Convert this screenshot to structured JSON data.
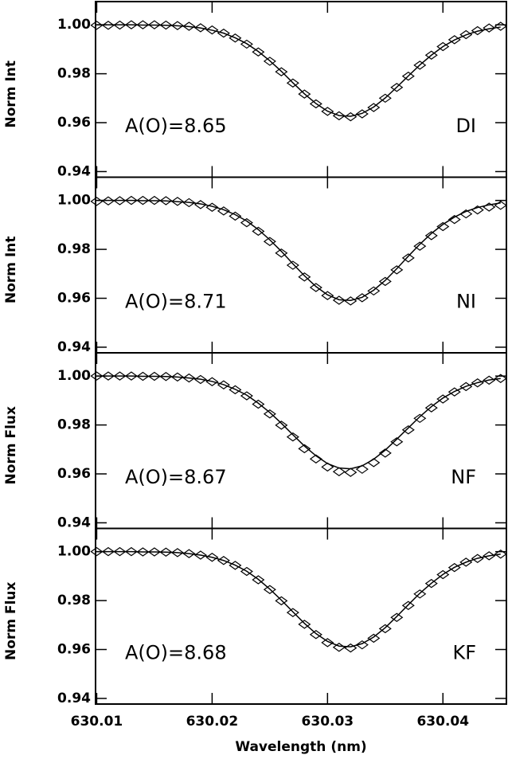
{
  "chart_data": [
    {
      "type": "line",
      "ylabel": "Norm Int",
      "annotation": "A(O)=8.65",
      "label": "DI",
      "x": [
        630.01,
        630.011,
        630.012,
        630.013,
        630.014,
        630.015,
        630.016,
        630.017,
        630.018,
        630.019,
        630.02,
        630.021,
        630.022,
        630.023,
        630.024,
        630.025,
        630.026,
        630.027,
        630.028,
        630.029,
        630.03,
        630.031,
        630.032,
        630.033,
        630.034,
        630.035,
        630.036,
        630.037,
        630.038,
        630.039,
        630.04,
        630.041,
        630.042,
        630.043,
        630.044,
        630.045
      ],
      "series": [
        {
          "color": "#000000",
          "marker": "none",
          "values": [
            1.0,
            1.0,
            1.0,
            1.0,
            0.9999,
            0.9999,
            0.9998,
            0.9996,
            0.9993,
            0.9987,
            0.9978,
            0.9966,
            0.9947,
            0.9923,
            0.9891,
            0.9853,
            0.981,
            0.9763,
            0.9718,
            0.9678,
            0.9647,
            0.9629,
            0.9626,
            0.9638,
            0.9664,
            0.9701,
            0.9745,
            0.9791,
            0.9836,
            0.9876,
            0.9911,
            0.9938,
            0.9959,
            0.9974,
            0.9984,
            0.9991
          ]
        },
        {
          "color": "#000000",
          "marker": "diamond",
          "values": [
            0.9998,
            0.9998,
            0.9999,
            1.0,
            1.0,
            1.0,
            0.9999,
            0.9997,
            0.9994,
            0.9988,
            0.9979,
            0.9966,
            0.9946,
            0.9921,
            0.9889,
            0.9851,
            0.9808,
            0.9762,
            0.9717,
            0.9677,
            0.9646,
            0.9628,
            0.9624,
            0.9636,
            0.9662,
            0.97,
            0.9744,
            0.979,
            0.9835,
            0.9876,
            0.9911,
            0.9939,
            0.996,
            0.9976,
            0.9987,
            0.9994
          ]
        }
      ],
      "xlim": [
        630.0099,
        630.0455
      ],
      "xticks": [
        630.01,
        630.02,
        630.03,
        630.04
      ],
      "ylim": [
        0.9377,
        1.0095
      ],
      "yticks": [
        0.94,
        0.96,
        0.98,
        {
          "value": 1,
          "label": "1.00"
        }
      ]
    },
    {
      "type": "line",
      "ylabel": "Norm Int",
      "annotation": "A(O)=8.71",
      "label": "NI",
      "x": [
        630.01,
        630.011,
        630.012,
        630.013,
        630.014,
        630.015,
        630.016,
        630.017,
        630.018,
        630.019,
        630.02,
        630.021,
        630.022,
        630.023,
        630.024,
        630.025,
        630.026,
        630.027,
        630.028,
        630.029,
        630.03,
        630.031,
        630.032,
        630.033,
        630.034,
        630.035,
        630.036,
        630.037,
        630.038,
        630.039,
        630.04,
        630.041,
        630.042,
        630.043,
        630.044,
        630.045
      ],
      "series": [
        {
          "color": "#000000",
          "marker": "none",
          "values": [
            1.0,
            1.0,
            1.0,
            1.0,
            0.9999,
            0.9999,
            0.9998,
            0.9995,
            0.9992,
            0.9986,
            0.9976,
            0.9962,
            0.9942,
            0.9916,
            0.9881,
            0.9839,
            0.9792,
            0.9741,
            0.9692,
            0.9648,
            0.9614,
            0.9594,
            0.9591,
            0.9604,
            0.9633,
            0.9673,
            0.9721,
            0.9772,
            0.9821,
            0.9865,
            0.9902,
            0.9932,
            0.9955,
            0.9971,
            0.9982,
            0.999
          ]
        },
        {
          "color": "#000000",
          "marker": "diamond",
          "values": [
            0.9996,
            0.9998,
            0.9999,
            1.0,
            1.0,
            1.0,
            0.9999,
            0.9996,
            0.9991,
            0.9983,
            0.9972,
            0.9957,
            0.9936,
            0.9909,
            0.9874,
            0.9832,
            0.9785,
            0.9735,
            0.9687,
            0.9644,
            0.9611,
            0.9592,
            0.9589,
            0.9602,
            0.963,
            0.9669,
            0.9716,
            0.9765,
            0.9813,
            0.9856,
            0.9893,
            0.9922,
            0.9945,
            0.9961,
            0.9973,
            0.998
          ]
        }
      ],
      "xlim": [
        630.0099,
        630.0455
      ],
      "xticks": [
        630.01,
        630.02,
        630.03,
        630.04
      ],
      "ylim": [
        0.9377,
        1.0095
      ],
      "yticks": [
        0.94,
        0.96,
        0.98,
        {
          "value": 1,
          "label": "1.00"
        }
      ]
    },
    {
      "type": "line",
      "ylabel": "Norm Flux",
      "annotation": "A(O)=8.67",
      "label": "NF",
      "x": [
        630.01,
        630.011,
        630.012,
        630.013,
        630.014,
        630.015,
        630.016,
        630.017,
        630.018,
        630.019,
        630.02,
        630.021,
        630.022,
        630.023,
        630.024,
        630.025,
        630.026,
        630.027,
        630.028,
        630.029,
        630.03,
        630.031,
        630.032,
        630.033,
        630.034,
        630.035,
        630.036,
        630.037,
        630.038,
        630.039,
        630.04,
        630.041,
        630.042,
        630.043,
        630.044,
        630.045
      ],
      "series": [
        {
          "color": "#000000",
          "marker": "none",
          "values": [
            1.0,
            1.0,
            1.0,
            1.0,
            0.9999,
            0.9999,
            0.9998,
            0.9996,
            0.9992,
            0.9987,
            0.9978,
            0.9965,
            0.9946,
            0.9922,
            0.9889,
            0.9851,
            0.9807,
            0.976,
            0.9714,
            0.9674,
            0.9642,
            0.9624,
            0.9621,
            0.9633,
            0.966,
            0.9697,
            0.9742,
            0.9788,
            0.9834,
            0.9875,
            0.991,
            0.9937,
            0.9958,
            0.9973,
            0.9984,
            0.999
          ]
        },
        {
          "color": "#000000",
          "marker": "diamond",
          "values": [
            1.0,
            1.0,
            1.0,
            1.0,
            0.9999,
            0.9999,
            0.9998,
            0.9996,
            0.9992,
            0.9986,
            0.9977,
            0.9964,
            0.9944,
            0.9919,
            0.9885,
            0.9845,
            0.9799,
            0.9751,
            0.9703,
            0.9661,
            0.9628,
            0.9609,
            0.9606,
            0.9619,
            0.9646,
            0.9685,
            0.9731,
            0.978,
            0.9827,
            0.987,
            0.9906,
            0.9935,
            0.9957,
            0.9972,
            0.9983,
            0.999
          ]
        }
      ],
      "xlim": [
        630.0099,
        630.0455
      ],
      "xticks": [
        630.01,
        630.02,
        630.03,
        630.04
      ],
      "ylim": [
        0.9377,
        1.0095
      ],
      "yticks": [
        0.94,
        0.96,
        0.98,
        {
          "value": 1,
          "label": "1.00"
        }
      ]
    },
    {
      "type": "line",
      "ylabel": "Norm Flux",
      "annotation": "A(O)=8.68",
      "label": "KF",
      "xlabel": "Wavelength (nm)",
      "x": [
        630.01,
        630.011,
        630.012,
        630.013,
        630.014,
        630.015,
        630.016,
        630.017,
        630.018,
        630.019,
        630.02,
        630.021,
        630.022,
        630.023,
        630.024,
        630.025,
        630.026,
        630.027,
        630.028,
        630.029,
        630.03,
        630.031,
        630.032,
        630.033,
        630.034,
        630.035,
        630.036,
        630.037,
        630.038,
        630.039,
        630.04,
        630.041,
        630.042,
        630.043,
        630.044,
        630.045
      ],
      "series": [
        {
          "color": "#000000",
          "marker": "none",
          "values": [
            1.0,
            1.0,
            1.0,
            1.0,
            0.9999,
            0.9999,
            0.9998,
            0.9996,
            0.9992,
            0.9986,
            0.9977,
            0.9964,
            0.9945,
            0.992,
            0.9887,
            0.9847,
            0.9802,
            0.9754,
            0.9707,
            0.9665,
            0.9633,
            0.9614,
            0.9611,
            0.9624,
            0.9651,
            0.9689,
            0.9735,
            0.9783,
            0.983,
            0.9871,
            0.9907,
            0.9936,
            0.9957,
            0.9973,
            0.9983,
            0.999
          ]
        },
        {
          "color": "#000000",
          "marker": "diamond",
          "values": [
            1.0,
            1.0,
            1.0,
            1.0,
            0.9999,
            0.9999,
            0.9998,
            0.9996,
            0.9992,
            0.9986,
            0.9977,
            0.9964,
            0.9944,
            0.9919,
            0.9885,
            0.9845,
            0.9799,
            0.9751,
            0.9703,
            0.9661,
            0.9628,
            0.9609,
            0.9606,
            0.9619,
            0.9646,
            0.9685,
            0.9731,
            0.978,
            0.9827,
            0.987,
            0.9906,
            0.9935,
            0.9957,
            0.9972,
            0.9983,
            0.999
          ]
        }
      ],
      "xlim": [
        630.0099,
        630.0455
      ],
      "xticks": [
        630.01,
        630.02,
        630.03,
        630.04
      ],
      "ylim": [
        0.9377,
        1.0095
      ],
      "yticks": [
        0.94,
        0.96,
        0.98,
        {
          "value": 1,
          "label": "1.00"
        }
      ]
    }
  ]
}
